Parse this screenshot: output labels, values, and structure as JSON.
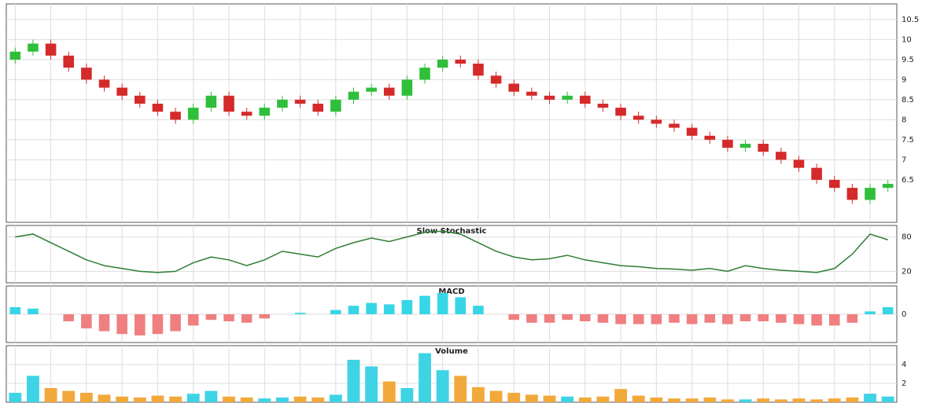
{
  "chart_data": [
    {
      "type": "candlestick",
      "up_color": "#2fbf3a",
      "down_color": "#d42a2a",
      "grid": true,
      "categories": [
        null,
        null,
        null,
        null,
        null,
        null,
        null,
        null,
        null,
        null,
        null,
        null,
        null,
        null,
        null,
        null,
        null,
        null,
        null,
        null,
        null,
        null,
        null,
        null,
        null,
        null,
        null,
        null,
        null,
        null,
        null,
        null,
        null,
        null,
        null,
        null,
        null,
        null,
        null,
        null,
        null,
        null,
        null,
        null,
        null,
        null,
        null,
        null,
        null,
        null
      ],
      "open": [
        9.5,
        9.7,
        9.9,
        9.6,
        9.3,
        9.0,
        8.8,
        8.6,
        8.4,
        8.2,
        8.0,
        8.3,
        8.6,
        8.2,
        8.1,
        8.3,
        8.5,
        8.4,
        8.2,
        8.5,
        8.7,
        8.8,
        8.6,
        9.0,
        9.3,
        9.5,
        9.4,
        9.1,
        8.9,
        8.7,
        8.6,
        8.5,
        8.6,
        8.4,
        8.3,
        8.1,
        8.0,
        7.9,
        7.8,
        7.6,
        7.5,
        7.3,
        7.4,
        7.2,
        7.0,
        6.8,
        6.5,
        6.3,
        6.0,
        6.3
      ],
      "high": [
        9.8,
        10.0,
        10.0,
        9.7,
        9.4,
        9.1,
        8.9,
        8.7,
        8.5,
        8.3,
        8.4,
        8.7,
        8.7,
        8.3,
        8.4,
        8.6,
        8.6,
        8.5,
        8.6,
        8.8,
        8.9,
        8.9,
        9.1,
        9.4,
        9.6,
        9.6,
        9.5,
        9.2,
        9.0,
        8.8,
        8.7,
        8.7,
        8.7,
        8.5,
        8.4,
        8.2,
        8.1,
        8.0,
        7.9,
        7.7,
        7.6,
        7.5,
        7.5,
        7.3,
        7.1,
        6.9,
        6.6,
        6.4,
        6.4,
        6.5
      ],
      "low": [
        9.4,
        9.6,
        9.5,
        9.2,
        8.9,
        8.7,
        8.5,
        8.3,
        8.1,
        7.9,
        7.9,
        8.2,
        8.1,
        8.0,
        8.0,
        8.2,
        8.3,
        8.1,
        8.1,
        8.4,
        8.6,
        8.5,
        8.5,
        8.9,
        9.2,
        9.3,
        9.0,
        8.8,
        8.6,
        8.5,
        8.4,
        8.4,
        8.3,
        8.2,
        8.0,
        7.9,
        7.8,
        7.7,
        7.5,
        7.4,
        7.2,
        7.2,
        7.1,
        6.9,
        6.7,
        6.4,
        6.2,
        5.9,
        5.9,
        6.2
      ],
      "close": [
        9.7,
        9.9,
        9.6,
        9.3,
        9.0,
        8.8,
        8.6,
        8.4,
        8.2,
        8.0,
        8.3,
        8.6,
        8.2,
        8.1,
        8.3,
        8.5,
        8.4,
        8.2,
        8.5,
        8.7,
        8.8,
        8.6,
        9.0,
        9.3,
        9.5,
        9.4,
        9.1,
        8.9,
        8.7,
        8.6,
        8.5,
        8.6,
        8.4,
        8.3,
        8.1,
        8.0,
        7.9,
        7.8,
        7.6,
        7.5,
        7.3,
        7.4,
        7.2,
        7.0,
        6.8,
        6.5,
        6.3,
        6.0,
        6.3,
        6.4
      ],
      "ylim": [
        5.44,
        10.89
      ],
      "yticks": [
        6.5,
        7,
        7.5,
        8,
        8.5,
        9,
        9.5,
        10,
        10.5
      ]
    },
    {
      "type": "line",
      "title": "Slow Stochastic",
      "color": "#2e7d32",
      "grid": true,
      "values": [
        80,
        85,
        70,
        55,
        40,
        30,
        25,
        20,
        18,
        20,
        35,
        45,
        40,
        30,
        40,
        55,
        50,
        45,
        60,
        70,
        78,
        72,
        80,
        88,
        90,
        85,
        70,
        55,
        45,
        40,
        42,
        48,
        40,
        35,
        30,
        28,
        25,
        24,
        22,
        25,
        20,
        30,
        25,
        22,
        20,
        18,
        25,
        50,
        85,
        75
      ],
      "ylim": [
        0,
        100
      ],
      "yticks": [
        20,
        80
      ]
    },
    {
      "type": "bar",
      "title": "MACD",
      "color": "#36d6e7",
      "grid": true,
      "values": [
        0.05,
        0.04,
        0.0,
        -0.05,
        -0.1,
        -0.12,
        -0.14,
        -0.15,
        -0.14,
        -0.12,
        -0.08,
        -0.04,
        -0.05,
        -0.06,
        -0.03,
        0.0,
        0.01,
        0.0,
        0.03,
        0.06,
        0.08,
        0.07,
        0.1,
        0.13,
        0.15,
        0.12,
        0.06,
        0.0,
        -0.04,
        -0.06,
        -0.06,
        -0.04,
        -0.05,
        -0.06,
        -0.07,
        -0.07,
        -0.07,
        -0.06,
        -0.07,
        -0.06,
        -0.07,
        -0.05,
        -0.05,
        -0.06,
        -0.07,
        -0.08,
        -0.08,
        -0.06,
        0.02,
        0.05
      ],
      "ylim": [
        -0.2,
        0.2
      ],
      "yticks": [
        0
      ]
    },
    {
      "type": "volume",
      "title": "Volume",
      "up_color": "#3fd3e6",
      "down_color": "#f2a93b",
      "grid": true,
      "values": [
        1.0,
        2.8,
        1.5,
        1.2,
        1.0,
        0.8,
        0.6,
        0.5,
        0.7,
        0.6,
        0.9,
        1.2,
        0.6,
        0.5,
        0.4,
        0.5,
        0.6,
        0.5,
        0.8,
        4.5,
        3.8,
        2.2,
        1.5,
        5.2,
        3.4,
        2.8,
        1.6,
        1.2,
        1.0,
        0.8,
        0.7,
        0.6,
        0.5,
        0.6,
        1.4,
        0.7,
        0.5,
        0.4,
        0.4,
        0.5,
        0.3,
        0.3,
        0.4,
        0.3,
        0.4,
        0.3,
        0.4,
        0.5,
        0.9,
        0.6
      ],
      "ylim": [
        0,
        6
      ],
      "yticks": [
        2,
        4
      ]
    }
  ]
}
